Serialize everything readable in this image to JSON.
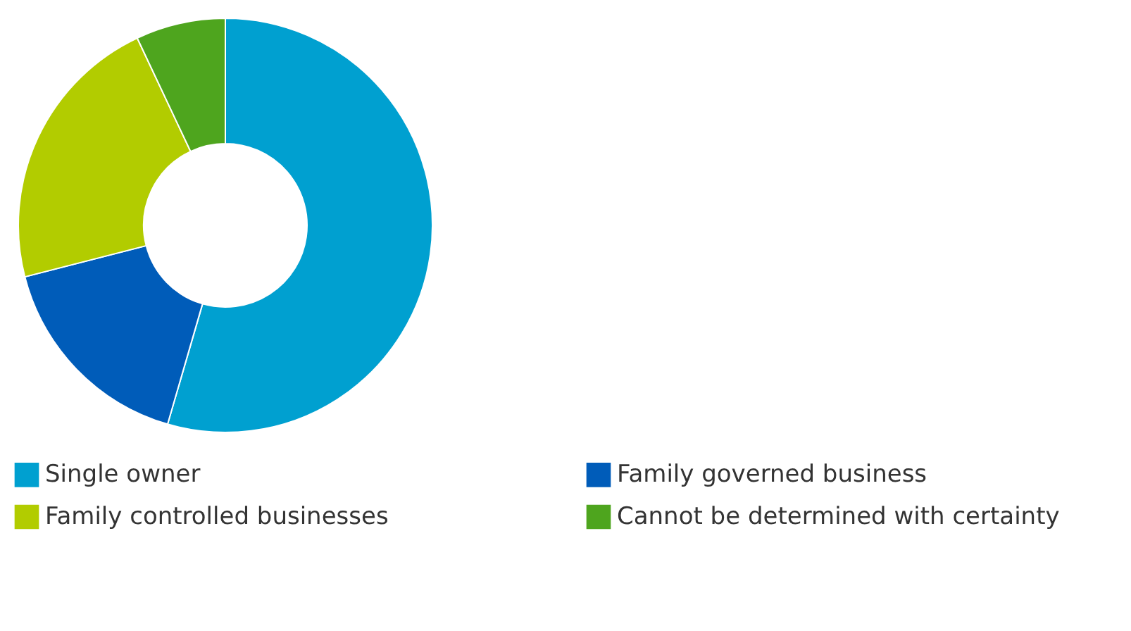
{
  "chart_data": {
    "type": "donut",
    "categories": [
      "Single owner",
      "Family governed business",
      "Family controlled businesses",
      "Cannot be determined with certainty"
    ],
    "values": [
      54.5,
      16.5,
      22,
      7
    ],
    "colors": [
      "#00a0d0",
      "#005cb9",
      "#b2cc00",
      "#4ea51e"
    ],
    "legend": "bottom"
  }
}
